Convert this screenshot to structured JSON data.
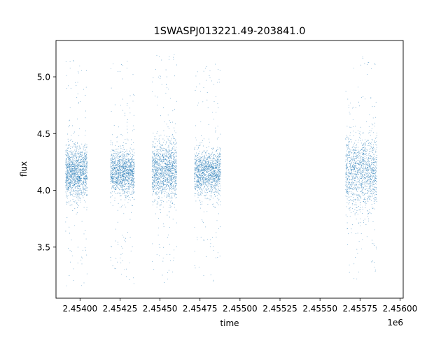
{
  "chart_data": {
    "type": "scatter",
    "title": "1SWASPJ013221.49-203841.0",
    "xlabel": "time",
    "ylabel": "flux",
    "x_offset_label": "1e6",
    "xlim": [
      2453850,
      2456020
    ],
    "ylim": [
      3.05,
      5.32
    ],
    "x_ticks": [
      2454000,
      2454250,
      2454500,
      2454750,
      2455000,
      2455250,
      2455500,
      2455750,
      2456000
    ],
    "x_tick_labels": [
      "2.45400",
      "2.45425",
      "2.45450",
      "2.45475",
      "2.45500",
      "2.45525",
      "2.45550",
      "2.45575",
      "2.45600"
    ],
    "y_ticks": [
      3.5,
      4.0,
      4.5,
      5.0
    ],
    "y_tick_labels": [
      "3.5",
      "4.0",
      "4.5",
      "5.0"
    ],
    "grid": false,
    "legend": "none",
    "marker_color": "#1f77b4",
    "series": [
      {
        "seasons": [
          {
            "x_start": 2453910,
            "x_end": 2454045,
            "center": 4.16,
            "core_spread": 0.11,
            "outlier_range": [
              3.15,
              5.15
            ]
          },
          {
            "x_start": 2454190,
            "x_end": 2454340,
            "center": 4.16,
            "core_spread": 0.1,
            "outlier_range": [
              3.15,
              5.15
            ]
          },
          {
            "x_start": 2454450,
            "x_end": 2454605,
            "center": 4.17,
            "core_spread": 0.13,
            "outlier_range": [
              3.15,
              5.2
            ]
          },
          {
            "x_start": 2454715,
            "x_end": 2454880,
            "center": 4.16,
            "core_spread": 0.1,
            "outlier_range": [
              3.2,
              5.15
            ]
          },
          {
            "x_start": 2455660,
            "x_end": 2455855,
            "center": 4.16,
            "core_spread": 0.16,
            "outlier_range": [
              3.15,
              5.2
            ]
          }
        ]
      }
    ]
  }
}
